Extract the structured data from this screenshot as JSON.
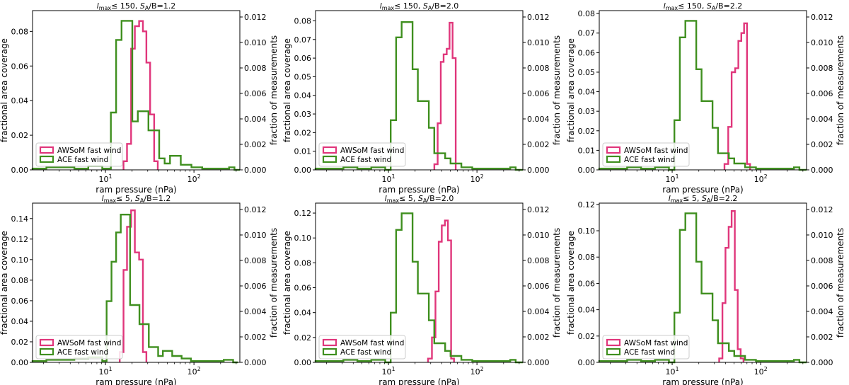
{
  "colors": {
    "awsom": "#e0367b",
    "ace": "#3f8f1f",
    "axis": "#000000",
    "legend_border": "#cccccc"
  },
  "chart_data": [
    {
      "type": "step-histogram",
      "title_prefix": "l",
      "title_sub": "max",
      "title_rest": "≤ 150, ",
      "title_s": "S",
      "title_s_sub": "A",
      "title_tail": "/B=1.2",
      "xlabel": "ram pressure (nPa)",
      "ylabel_left": "fractional area coverage",
      "ylabel_right": "fraction of measurements",
      "xscale": "log",
      "xlim": [
        1.5,
        330
      ],
      "xticks": [
        {
          "v": 10,
          "base": "10",
          "exp": "1"
        },
        {
          "v": 100,
          "base": "10",
          "exp": "2"
        }
      ],
      "ylim_left": [
        0,
        0.092
      ],
      "yticks_left": [
        "0.00",
        "0.02",
        "0.04",
        "0.06",
        "0.08"
      ],
      "yticks_left_values": [
        0,
        0.02,
        0.04,
        0.06,
        0.08
      ],
      "ylim_right": [
        0,
        0.0125
      ],
      "yticks_right": [
        "0.000",
        "0.002",
        "0.004",
        "0.006",
        "0.008",
        "0.010",
        "0.012"
      ],
      "yticks_right_values": [
        0,
        0.002,
        0.004,
        0.006,
        0.008,
        0.01,
        0.012
      ],
      "legend": [
        "AWSoM fast wind",
        "ACE fast wind"
      ],
      "series": [
        {
          "name": "AWSoM fast wind",
          "axis": "left",
          "edges": [
            16,
            17.5,
            19.5,
            21.5,
            24,
            26.5,
            29,
            32,
            35.5,
            39
          ],
          "values": [
            0.005,
            0.015,
            0.07,
            0.083,
            0.086,
            0.08,
            0.062,
            0.032,
            0.005
          ]
        },
        {
          "name": "ACE fast wind",
          "axis": "right",
          "edges": [
            1.5,
            2.15,
            3.1,
            4.45,
            6.4,
            9.2,
            11.5,
            13.2,
            15.2,
            17.5,
            20.1,
            23.2,
            26.6,
            30.6,
            35.2,
            40.5,
            46.6,
            53.6,
            61.6,
            70.9,
            81.5,
            93.7,
            107.8,
            124,
            142.6,
            164,
            188.6,
            216.9,
            249.4,
            286.8,
            330
          ],
          "values": [
            0.0001,
            0.0002,
            0.0002,
            0.0001,
            0.0003,
            0.0001,
            0.0045,
            0.0102,
            0.0117,
            0.0117,
            0.0038,
            0.0046,
            0.0046,
            0.0031,
            0.0031,
            0.0009,
            0.0005,
            0.0011,
            0.0011,
            0.0004,
            0.0004,
            0.0002,
            0.0002,
            0.0001,
            0.0001,
            0.0001,
            0.0001,
            0.0001,
            0.0002,
            0
          ]
        }
      ]
    },
    {
      "type": "step-histogram",
      "title_prefix": "l",
      "title_sub": "max",
      "title_rest": "≤ 150, ",
      "title_s": "S",
      "title_s_sub": "A",
      "title_tail": "/B=2.0",
      "xlabel": "ram pressure (nPa)",
      "ylabel_left": "fractional area coverage",
      "ylabel_right": "fraction of measurements",
      "xscale": "log",
      "xlim": [
        1.5,
        330
      ],
      "xticks": [
        {
          "v": 10,
          "base": "10",
          "exp": "1"
        },
        {
          "v": 100,
          "base": "10",
          "exp": "2"
        }
      ],
      "ylim_left": [
        0,
        0.0855
      ],
      "yticks_left": [
        "0.00",
        "0.01",
        "0.02",
        "0.03",
        "0.04",
        "0.05",
        "0.06",
        "0.07",
        "0.08"
      ],
      "yticks_left_values": [
        0,
        0.01,
        0.02,
        0.03,
        0.04,
        0.05,
        0.06,
        0.07,
        0.08
      ],
      "ylim_right": [
        0,
        0.0125
      ],
      "yticks_right": [
        "0.000",
        "0.002",
        "0.004",
        "0.006",
        "0.008",
        "0.010",
        "0.012"
      ],
      "yticks_right_values": [
        0,
        0.002,
        0.004,
        0.006,
        0.008,
        0.01,
        0.012
      ],
      "legend": [
        "AWSoM fast wind",
        "ACE fast wind"
      ],
      "series": [
        {
          "name": "AWSoM fast wind",
          "axis": "left",
          "edges": [
            33,
            36,
            39,
            42,
            45.5,
            49,
            53,
            57.5
          ],
          "values": [
            0.003,
            0.025,
            0.058,
            0.062,
            0.065,
            0.079,
            0.06
          ]
        },
        {
          "name": "ACE fast wind",
          "axis": "right",
          "edges": [
            1.5,
            2.15,
            3.1,
            4.45,
            6.4,
            9.2,
            10.6,
            12.2,
            14.1,
            16.2,
            18.7,
            21.5,
            24.8,
            28.6,
            32.9,
            37.9,
            43.7,
            50.3,
            57.9,
            66.7,
            76.8,
            88.5,
            101.9,
            117.4,
            135.2,
            155.8,
            179.4,
            206.6,
            238,
            274,
            330
          ],
          "values": [
            0.0001,
            0.0001,
            0.0002,
            0.0001,
            0.0002,
            0,
            0.0039,
            0.0104,
            0.0116,
            0.0116,
            0.0079,
            0.0054,
            0.0054,
            0.0033,
            0.0013,
            0.0013,
            0.0009,
            0.0005,
            0.0005,
            0.0002,
            0.0002,
            0.0001,
            0.0001,
            0.0001,
            0.0001,
            0.0001,
            0.0001,
            0.0001,
            0.0002,
            0
          ]
        }
      ]
    },
    {
      "type": "step-histogram",
      "title_prefix": "l",
      "title_sub": "max",
      "title_rest": "≤ 150, ",
      "title_s": "S",
      "title_s_sub": "A",
      "title_tail": "/B=2.2",
      "xlabel": "ram pressure (nPa)",
      "ylabel_left": "fractional area coverage",
      "ylabel_right": "fraction of measurements",
      "xscale": "log",
      "xlim": [
        1.5,
        330
      ],
      "xticks": [
        {
          "v": 10,
          "base": "10",
          "exp": "1"
        },
        {
          "v": 100,
          "base": "10",
          "exp": "2"
        }
      ],
      "ylim_left": [
        0,
        0.0815
      ],
      "yticks_left": [
        "0.00",
        "0.01",
        "0.02",
        "0.03",
        "0.04",
        "0.05",
        "0.06",
        "0.07",
        "0.08"
      ],
      "yticks_left_values": [
        0,
        0.01,
        0.02,
        0.03,
        0.04,
        0.05,
        0.06,
        0.07,
        0.08
      ],
      "ylim_right": [
        0,
        0.0125
      ],
      "yticks_right": [
        "0.000",
        "0.002",
        "0.004",
        "0.006",
        "0.008",
        "0.010",
        "0.012"
      ],
      "yticks_right_values": [
        0,
        0.002,
        0.004,
        0.006,
        0.008,
        0.01,
        0.012
      ],
      "legend": [
        "AWSoM fast wind",
        "ACE fast wind"
      ],
      "series": [
        {
          "name": "AWSoM fast wind",
          "axis": "left",
          "edges": [
            39,
            43,
            47,
            51.5,
            56,
            60.5,
            65,
            70,
            76
          ],
          "values": [
            0.003,
            0.022,
            0.05,
            0.052,
            0.066,
            0.07,
            0.075,
            0.003
          ]
        },
        {
          "name": "ACE fast wind",
          "axis": "right",
          "edges": [
            1.5,
            2.15,
            3.1,
            4.45,
            6.4,
            9.2,
            10.6,
            12.2,
            14.1,
            16.2,
            18.7,
            21.5,
            24.8,
            28.6,
            32.9,
            37.9,
            43.7,
            50.3,
            57.9,
            66.7,
            76.8,
            88.5,
            101.9,
            117.4,
            135.2,
            155.8,
            179.4,
            206.6,
            238,
            274,
            330
          ],
          "values": [
            0.0001,
            0.0001,
            0.0002,
            0.0001,
            0.0002,
            0,
            0.0039,
            0.0104,
            0.0117,
            0.0117,
            0.0079,
            0.0054,
            0.0054,
            0.0033,
            0.0013,
            0.0013,
            0.0009,
            0.0005,
            0.0005,
            0.0002,
            0.0002,
            0.0001,
            0.0001,
            0.0001,
            0.0001,
            0.0001,
            0.0001,
            0.0001,
            0.0002,
            0
          ]
        }
      ]
    },
    {
      "type": "step-histogram",
      "title_prefix": "l",
      "title_sub": "max",
      "title_rest": "≤ 5, ",
      "title_s": "S",
      "title_s_sub": "A",
      "title_tail": "/B=1.2",
      "xlabel": "ram pressure (nPa)",
      "ylabel_left": "fractional area coverage",
      "ylabel_right": "fraction of measurements",
      "xscale": "log",
      "xlim": [
        1.5,
        330
      ],
      "xticks": [
        {
          "v": 10,
          "base": "10",
          "exp": "1"
        },
        {
          "v": 100,
          "base": "10",
          "exp": "2"
        }
      ],
      "ylim_left": [
        0,
        0.155
      ],
      "yticks_left": [
        "0.00",
        "0.02",
        "0.04",
        "0.06",
        "0.08",
        "0.10",
        "0.12",
        "0.14"
      ],
      "yticks_left_values": [
        0,
        0.02,
        0.04,
        0.06,
        0.08,
        0.1,
        0.12,
        0.14
      ],
      "ylim_right": [
        0,
        0.0125
      ],
      "yticks_right": [
        "0.000",
        "0.002",
        "0.004",
        "0.006",
        "0.008",
        "0.010",
        "0.012"
      ],
      "yticks_right_values": [
        0,
        0.002,
        0.004,
        0.006,
        0.008,
        0.01,
        0.012
      ],
      "legend": [
        "AWSoM fast wind",
        "ACE fast wind"
      ],
      "series": [
        {
          "name": "AWSoM fast wind",
          "axis": "left",
          "edges": [
            14.5,
            16,
            17.5,
            19.5,
            21.5,
            24,
            26.5,
            29
          ],
          "values": [
            0.01,
            0.09,
            0.132,
            0.148,
            0.107,
            0.1,
            0.01
          ]
        },
        {
          "name": "ACE fast wind",
          "axis": "right",
          "edges": [
            1.5,
            2.15,
            3.1,
            4.45,
            6.4,
            9.2,
            10.3,
            11.7,
            13.2,
            14.9,
            16.8,
            19,
            21.4,
            24.2,
            27.3,
            30.9,
            34.9,
            39.4,
            44.5,
            50.3,
            56.8,
            64.2,
            72.5,
            81.9,
            92.5,
            104.5,
            118,
            133.3,
            150.6,
            170,
            192,
            217,
            245,
            277,
            313
          ],
          "values": [
            0.0001,
            0.0002,
            0.0002,
            0.0003,
            0.0004,
            0.0001,
            0.0048,
            0.0079,
            0.0102,
            0.0116,
            0.0116,
            0.0045,
            0.0045,
            0.003,
            0.003,
            0.0012,
            0.0012,
            0.0005,
            0.0009,
            0.0009,
            0.0005,
            0.0005,
            0.0003,
            0.0003,
            0.0001,
            0.0001,
            0.0001,
            0.0001,
            0.0001,
            0.0001,
            0.0001,
            0.0002,
            0.0002,
            0
          ]
        }
      ]
    },
    {
      "type": "step-histogram",
      "title_prefix": "l",
      "title_sub": "max",
      "title_rest": "≤ 5, ",
      "title_s": "S",
      "title_s_sub": "A",
      "title_tail": "/B=2.0",
      "xlabel": "ram pressure (nPa)",
      "ylabel_left": "fractional area coverage",
      "ylabel_right": "fraction of measurements",
      "xscale": "log",
      "xlim": [
        1.5,
        330
      ],
      "xticks": [
        {
          "v": 10,
          "base": "10",
          "exp": "1"
        },
        {
          "v": 100,
          "base": "10",
          "exp": "2"
        }
      ],
      "ylim_left": [
        0,
        0.128
      ],
      "yticks_left": [
        "0.00",
        "0.02",
        "0.04",
        "0.06",
        "0.08",
        "0.10",
        "0.12"
      ],
      "yticks_left_values": [
        0,
        0.02,
        0.04,
        0.06,
        0.08,
        0.1,
        0.12
      ],
      "ylim_right": [
        0,
        0.0125
      ],
      "yticks_right": [
        "0.000",
        "0.002",
        "0.004",
        "0.006",
        "0.008",
        "0.010",
        "0.012"
      ],
      "yticks_right_values": [
        0,
        0.002,
        0.004,
        0.006,
        0.008,
        0.01,
        0.012
      ],
      "legend": [
        "AWSoM fast wind",
        "ACE fast wind"
      ],
      "series": [
        {
          "name": "AWSoM fast wind",
          "axis": "left",
          "edges": [
            28,
            31,
            34,
            37,
            40,
            43.5,
            47,
            51,
            55
          ],
          "values": [
            0.003,
            0.02,
            0.057,
            0.097,
            0.11,
            0.114,
            0.098,
            0.003
          ]
        },
        {
          "name": "ACE fast wind",
          "axis": "right",
          "edges": [
            1.5,
            2.15,
            3.1,
            4.45,
            6.4,
            9.2,
            10.6,
            12.2,
            14.1,
            16.2,
            18.7,
            21.5,
            24.8,
            28.6,
            32.9,
            37.9,
            43.7,
            50.3,
            57.9,
            66.7,
            76.8,
            88.5,
            101.9,
            117.4,
            135.2,
            155.8,
            179.4,
            206.6,
            238,
            274,
            330
          ],
          "values": [
            0.0001,
            0.0001,
            0.0002,
            0.0001,
            0.0002,
            0,
            0.0039,
            0.0104,
            0.0117,
            0.0117,
            0.0079,
            0.0054,
            0.0054,
            0.0033,
            0.0015,
            0.0015,
            0.0009,
            0.0005,
            0.0005,
            0.0002,
            0.0002,
            0.0001,
            0.0001,
            0.0001,
            0.0001,
            0.0001,
            0.0001,
            0.0001,
            0.0002,
            0
          ]
        }
      ]
    },
    {
      "type": "step-histogram",
      "title_prefix": "l",
      "title_sub": "max",
      "title_rest": "≤ 5, ",
      "title_s": "S",
      "title_s_sub": "A",
      "title_tail": "/B=2.2",
      "xlabel": "ram pressure (nPa)",
      "ylabel_left": "fractional area coverage",
      "ylabel_right": "fraction of measurements",
      "xscale": "log",
      "xlim": [
        1.5,
        330
      ],
      "xticks": [
        {
          "v": 10,
          "base": "10",
          "exp": "1"
        },
        {
          "v": 100,
          "base": "10",
          "exp": "2"
        }
      ],
      "ylim_left": [
        0,
        0.121
      ],
      "yticks_left": [
        "0.00",
        "0.02",
        "0.04",
        "0.06",
        "0.08",
        "0.10",
        "0.12"
      ],
      "yticks_left_values": [
        0,
        0.02,
        0.04,
        0.06,
        0.08,
        0.1,
        0.12
      ],
      "ylim_right": [
        0,
        0.0125
      ],
      "yticks_right": [
        "0.000",
        "0.002",
        "0.004",
        "0.006",
        "0.008",
        "0.010",
        "0.012"
      ],
      "yticks_right_values": [
        0,
        0.002,
        0.004,
        0.006,
        0.008,
        0.01,
        0.012
      ],
      "legend": [
        "AWSoM fast wind",
        "ACE fast wind"
      ],
      "series": [
        {
          "name": "AWSoM fast wind",
          "axis": "left",
          "edges": [
            34,
            37,
            40,
            43.5,
            47,
            51,
            55,
            59.5,
            64
          ],
          "values": [
            0.003,
            0.045,
            0.087,
            0.103,
            0.115,
            0.055,
            0.01,
            0.003
          ]
        },
        {
          "name": "ACE fast wind",
          "axis": "right",
          "edges": [
            1.5,
            2.15,
            3.1,
            4.45,
            6.4,
            9.2,
            10.6,
            12.2,
            14.1,
            16.2,
            18.7,
            21.5,
            24.8,
            28.6,
            32.9,
            37.9,
            43.7,
            50.3,
            57.9,
            66.7,
            76.8,
            88.5,
            101.9,
            117.4,
            135.2,
            155.8,
            179.4,
            206.6,
            238,
            274,
            330
          ],
          "values": [
            0.0001,
            0.0001,
            0.0002,
            0.0001,
            0.0002,
            0,
            0.0039,
            0.0104,
            0.0117,
            0.0117,
            0.0079,
            0.0054,
            0.0054,
            0.0033,
            0.0015,
            0.0015,
            0.0009,
            0.0005,
            0.0005,
            0.0002,
            0.0002,
            0.0001,
            0.0001,
            0.0001,
            0.0001,
            0.0001,
            0.0001,
            0.0001,
            0.0002,
            0
          ]
        }
      ]
    }
  ]
}
